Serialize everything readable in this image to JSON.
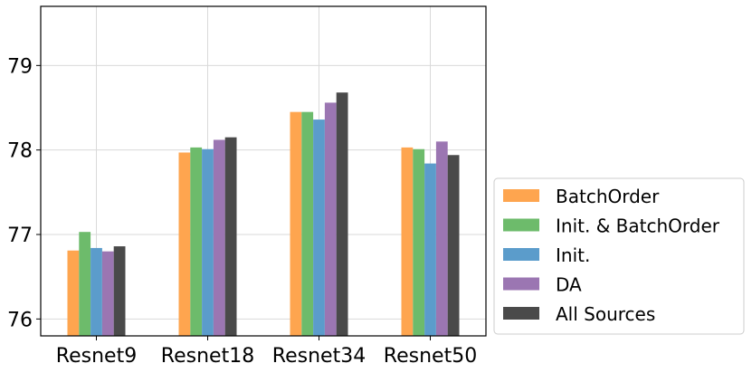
{
  "chart_data": {
    "type": "bar",
    "title": "",
    "xlabel": "",
    "ylabel": "",
    "categories": [
      "Resnet9",
      "Resnet18",
      "Resnet34",
      "Resnet50"
    ],
    "ylim": [
      75.8,
      79.7
    ],
    "yticks": [
      76,
      77,
      78,
      79
    ],
    "grid": true,
    "legend_position": "right-bottom-outside",
    "series": [
      {
        "name": "BatchOrder",
        "color": "#fea54f",
        "values": [
          76.81,
          77.97,
          78.45,
          78.03
        ]
      },
      {
        "name": "Init. & BatchOrder",
        "color": "#6dbb6b",
        "values": [
          77.03,
          78.03,
          78.45,
          78.01
        ]
      },
      {
        "name": "Init.",
        "color": "#5b9ccb",
        "values": [
          76.84,
          78.01,
          78.36,
          77.84
        ]
      },
      {
        "name": "DA",
        "color": "#9b76b2",
        "values": [
          76.8,
          78.12,
          78.56,
          78.1
        ]
      },
      {
        "name": "All Sources",
        "color": "#4a4a4a",
        "values": [
          76.86,
          78.15,
          78.68,
          77.94
        ]
      }
    ]
  }
}
